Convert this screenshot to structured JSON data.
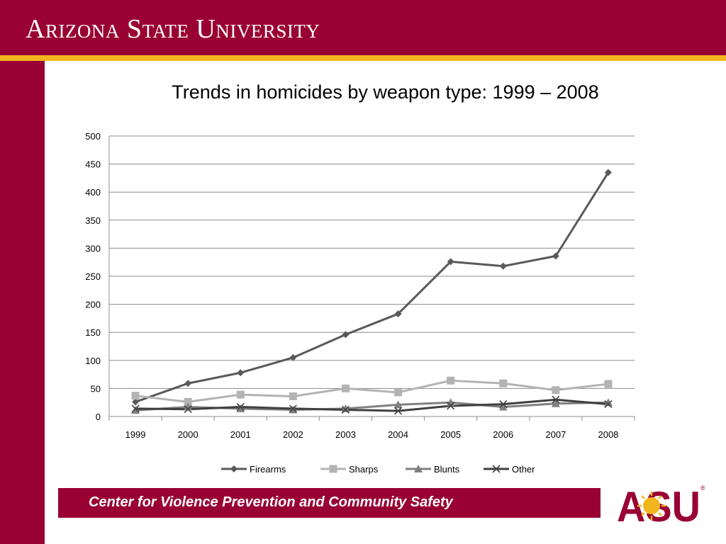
{
  "header": {
    "title": "Arizona State University"
  },
  "footer": {
    "text": "Center for Violence Prevention and Community Safety"
  },
  "logo": {
    "text": "ASU",
    "registered": "®"
  },
  "colors": {
    "maroon": "#990033",
    "gold": "#f2b51d"
  },
  "chart_data": {
    "type": "line",
    "title": "Trends in homicides by weapon type: 1999 – 2008",
    "xlabel": "",
    "ylabel": "",
    "categories": [
      "1999",
      "2000",
      "2001",
      "2002",
      "2003",
      "2004",
      "2005",
      "2006",
      "2007",
      "2008"
    ],
    "ylim": [
      0,
      500
    ],
    "yticks": [
      0,
      50,
      100,
      150,
      200,
      250,
      300,
      350,
      400,
      450,
      500
    ],
    "grid": true,
    "legend": "bottom",
    "series": [
      {
        "name": "Firearms",
        "marker": "diamond",
        "color": "#595959",
        "values": [
          26,
          59,
          78,
          105,
          146,
          183,
          276,
          268,
          286,
          435
        ]
      },
      {
        "name": "Sharps",
        "marker": "square",
        "color": "#b3b3b3",
        "values": [
          37,
          26,
          39,
          36,
          50,
          43,
          64,
          59,
          47,
          58
        ]
      },
      {
        "name": "Blunts",
        "marker": "triangle",
        "color": "#808080",
        "values": [
          11,
          17,
          14,
          12,
          14,
          21,
          25,
          17,
          23,
          25
        ]
      },
      {
        "name": "Other",
        "marker": "x",
        "color": "#404040",
        "values": [
          14,
          13,
          17,
          14,
          12,
          10,
          19,
          22,
          30,
          22
        ]
      }
    ]
  }
}
